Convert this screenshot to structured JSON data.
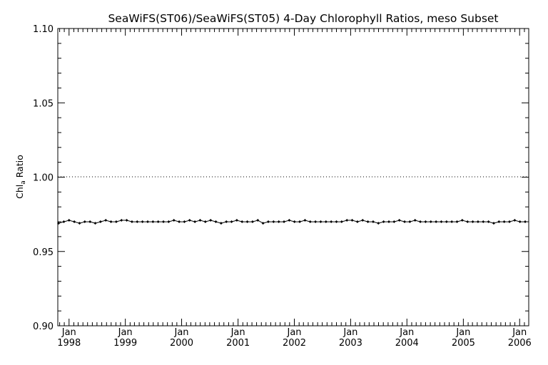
{
  "chart_data": {
    "type": "line",
    "title": "SeaWiFS(ST06)/SeaWiFS(ST05) 4-Day Chlorophyll Ratios, meso Subset",
    "ylabel": {
      "main": "Chl",
      "sub": "a",
      "rest": " Ratio"
    },
    "xlabel": "",
    "ylim": [
      0.9,
      1.1
    ],
    "xlim": [
      "1997-10-20",
      "2006-03-01"
    ],
    "yticks": [
      "0.90",
      "0.95",
      "1.00",
      "1.05",
      "1.10"
    ],
    "xticks": [
      {
        "month": "Jan",
        "year": "1998",
        "date": "1998-01-01"
      },
      {
        "month": "Jan",
        "year": "1999",
        "date": "1999-01-01"
      },
      {
        "month": "Jan",
        "year": "2000",
        "date": "2000-01-01"
      },
      {
        "month": "Jan",
        "year": "2001",
        "date": "2001-01-01"
      },
      {
        "month": "Jan",
        "year": "2002",
        "date": "2002-01-01"
      },
      {
        "month": "Jan",
        "year": "2003",
        "date": "2003-01-01"
      },
      {
        "month": "Jan",
        "year": "2004",
        "date": "2004-01-01"
      },
      {
        "month": "Jan",
        "year": "2005",
        "date": "2005-01-01"
      },
      {
        "month": "Jan",
        "year": "2006",
        "date": "2006-01-01"
      }
    ],
    "reference_line": 1.0,
    "grid": false,
    "legend": "none",
    "series": [
      {
        "marker": "diamond",
        "color": "#000000",
        "x": [
          "1997-10-25",
          "1997-11-28",
          "1998-01-01",
          "1998-02-04",
          "1998-03-10",
          "1998-04-13",
          "1998-05-17",
          "1998-06-20",
          "1998-07-24",
          "1998-08-27",
          "1998-09-30",
          "1998-11-03",
          "1998-12-07",
          "1999-01-10",
          "1999-02-13",
          "1999-03-19",
          "1999-04-22",
          "1999-05-26",
          "1999-06-29",
          "1999-08-02",
          "1999-09-05",
          "1999-10-09",
          "1999-11-12",
          "1999-12-16",
          "2000-01-19",
          "2000-02-22",
          "2000-03-27",
          "2000-04-30",
          "2000-06-03",
          "2000-07-07",
          "2000-08-10",
          "2000-09-13",
          "2000-10-17",
          "2000-11-20",
          "2000-12-24",
          "2001-01-27",
          "2001-03-02",
          "2001-04-05",
          "2001-05-09",
          "2001-06-12",
          "2001-07-16",
          "2001-08-19",
          "2001-09-22",
          "2001-10-26",
          "2001-11-29",
          "2002-01-02",
          "2002-02-05",
          "2002-03-11",
          "2002-04-14",
          "2002-05-18",
          "2002-06-21",
          "2002-07-25",
          "2002-08-28",
          "2002-10-01",
          "2002-11-04",
          "2002-12-08",
          "2003-01-11",
          "2003-02-14",
          "2003-03-20",
          "2003-04-23",
          "2003-05-27",
          "2003-06-30",
          "2003-08-03",
          "2003-09-06",
          "2003-10-10",
          "2003-11-13",
          "2003-12-17",
          "2004-01-20",
          "2004-02-23",
          "2004-03-28",
          "2004-05-01",
          "2004-06-04",
          "2004-07-08",
          "2004-08-11",
          "2004-09-14",
          "2004-10-18",
          "2004-11-21",
          "2004-12-25",
          "2005-01-28",
          "2005-03-03",
          "2005-04-06",
          "2005-05-10",
          "2005-06-13",
          "2005-07-17",
          "2005-08-20",
          "2005-09-23",
          "2005-10-27",
          "2005-11-30",
          "2006-01-03",
          "2006-02-06"
        ],
        "y": [
          0.969,
          0.97,
          0.971,
          0.97,
          0.969,
          0.97,
          0.97,
          0.969,
          0.97,
          0.971,
          0.97,
          0.97,
          0.971,
          0.971,
          0.97,
          0.97,
          0.97,
          0.97,
          0.97,
          0.97,
          0.97,
          0.97,
          0.971,
          0.97,
          0.97,
          0.971,
          0.97,
          0.971,
          0.97,
          0.971,
          0.97,
          0.969,
          0.97,
          0.97,
          0.971,
          0.97,
          0.97,
          0.97,
          0.971,
          0.969,
          0.97,
          0.97,
          0.97,
          0.97,
          0.971,
          0.97,
          0.97,
          0.971,
          0.97,
          0.97,
          0.97,
          0.97,
          0.97,
          0.97,
          0.97,
          0.971,
          0.971,
          0.97,
          0.971,
          0.97,
          0.97,
          0.969,
          0.97,
          0.97,
          0.97,
          0.971,
          0.97,
          0.97,
          0.971,
          0.97,
          0.97,
          0.97,
          0.97,
          0.97,
          0.97,
          0.97,
          0.97,
          0.971,
          0.97,
          0.97,
          0.97,
          0.97,
          0.97,
          0.969,
          0.97,
          0.97,
          0.97,
          0.971,
          0.97,
          0.97
        ]
      }
    ]
  }
}
